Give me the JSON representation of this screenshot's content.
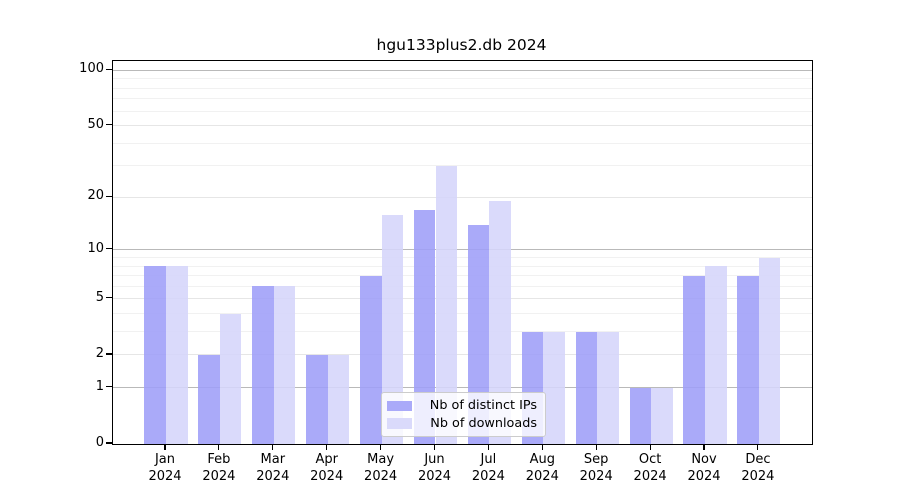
{
  "title": "hgu133plus2.db 2024",
  "chart_data": {
    "type": "bar",
    "title": "hgu133plus2.db 2024",
    "categories": [
      "Jan 2024",
      "Feb 2024",
      "Mar 2024",
      "Apr 2024",
      "May 2024",
      "Jun 2024",
      "Jul 2024",
      "Aug 2024",
      "Sep 2024",
      "Oct 2024",
      "Nov 2024",
      "Dec 2024"
    ],
    "series": [
      {
        "name": "Nb of distinct IPs",
        "key": "ips",
        "color": "#9e9ef8",
        "values": [
          8,
          2,
          6,
          2,
          7,
          17,
          14,
          3,
          3,
          1,
          7,
          7
        ]
      },
      {
        "name": "Nb of downloads",
        "key": "downloads",
        "color": "#d5d5fa",
        "values": [
          8,
          4,
          6,
          2,
          16,
          30,
          19,
          3,
          3,
          1,
          8,
          9
        ]
      }
    ],
    "xlabel": "",
    "ylabel": "",
    "yscale": "log1p",
    "ylim": [
      0,
      111
    ],
    "yticks": [
      0,
      1,
      2,
      5,
      10,
      20,
      50,
      100
    ],
    "ytick_labels": [
      "0",
      "1",
      "2",
      "5",
      "10",
      "20",
      "50",
      "100"
    ],
    "minor_gridlines": [
      3,
      4,
      6,
      7,
      8,
      9,
      30,
      40,
      60,
      70,
      80,
      90
    ],
    "emphasized_gridlines": [
      1,
      10,
      100
    ],
    "grid": true,
    "legend_position": "inside-bottom-center"
  },
  "colors": {
    "bar_distinct_ips": "#9e9ef8",
    "bar_downloads": "#d5d5fa",
    "grid_emphasized": "#b9b9b9",
    "grid_labeled": "#e6e6e6",
    "grid_minor": "#f1f1f1",
    "axis": "#000000",
    "legend_border": "#cccccc"
  }
}
